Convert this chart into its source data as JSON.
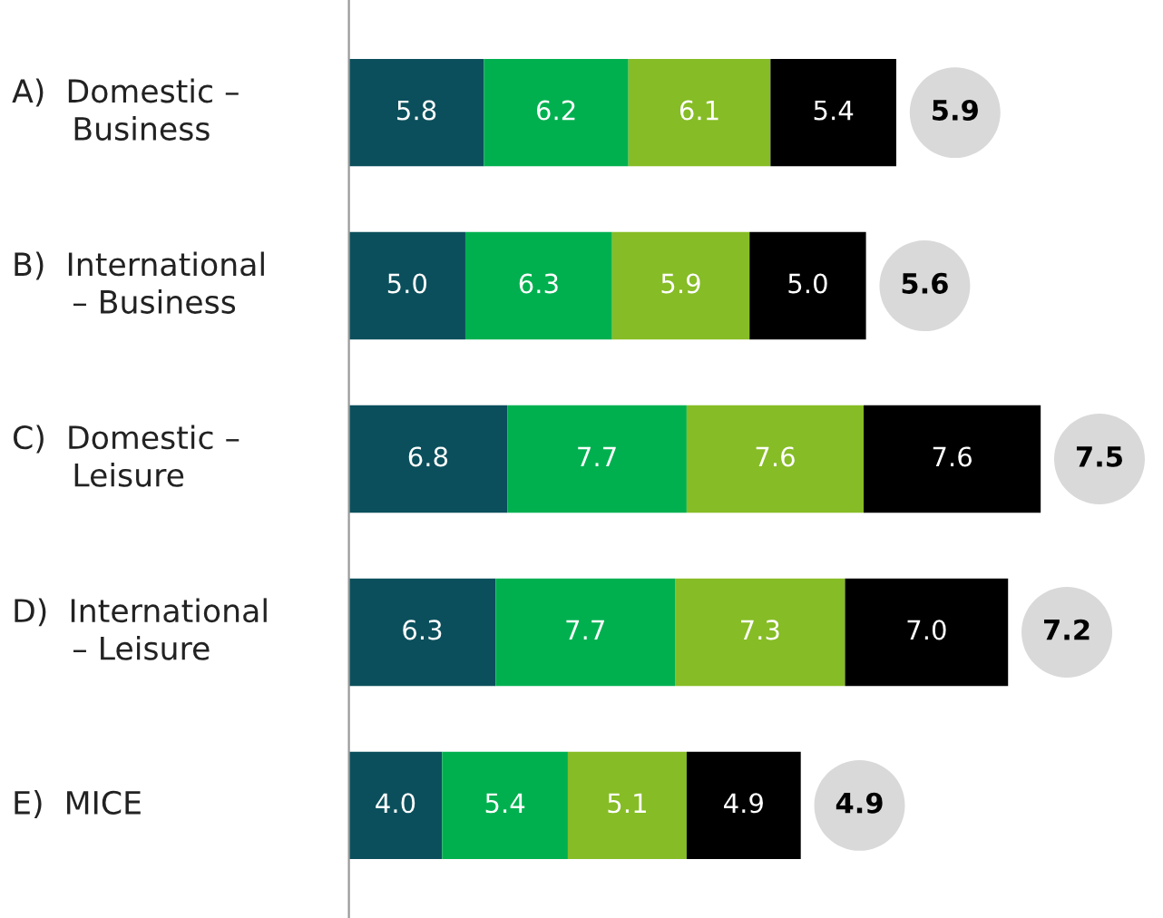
{
  "chart_data": {
    "type": "bar",
    "orientation": "horizontal",
    "stacked": true,
    "categories": [
      "A)  Domestic –\n      Business",
      "B)  International\n      – Business",
      "C)  Domestic –\n      Leisure",
      "D)  International\n      – Leisure",
      "E)  MICE"
    ],
    "series": [
      {
        "color": "#0b4f5c",
        "values": [
          5.8,
          5.0,
          6.8,
          6.3,
          4.0
        ],
        "value_labels": [
          "5.8",
          "5.0",
          "6.8",
          "6.3",
          "4.0"
        ]
      },
      {
        "color": "#00b04f",
        "values": [
          6.2,
          6.3,
          7.7,
          7.7,
          5.4
        ],
        "value_labels": [
          "6.2",
          "6.3",
          "7.7",
          "7.7",
          "5.4"
        ]
      },
      {
        "color": "#86bc25",
        "values": [
          6.1,
          5.9,
          7.6,
          7.3,
          5.1
        ],
        "value_labels": [
          "6.1",
          "5.9",
          "7.6",
          "7.3",
          "5.1"
        ]
      },
      {
        "color": "#000000",
        "values": [
          5.4,
          5.0,
          7.6,
          7.0,
          4.9
        ],
        "value_labels": [
          "5.4",
          "5.0",
          "7.6",
          "7.0",
          "4.9"
        ]
      }
    ],
    "annotations": [
      "5.9",
      "5.6",
      "7.5",
      "7.2",
      "4.9"
    ],
    "grid": false,
    "legend": false
  }
}
